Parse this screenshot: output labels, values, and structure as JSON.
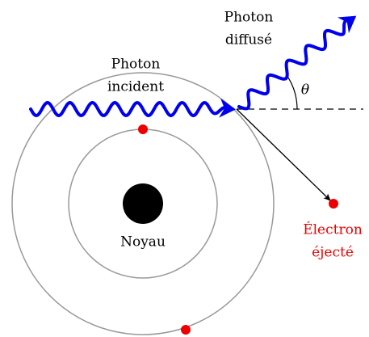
{
  "labels": {
    "incident": [
      "Photon",
      "incident"
    ],
    "scattered": [
      "Photon",
      "diffusé"
    ],
    "angle": "θ",
    "nucleus": "Noyau",
    "electron": [
      "Électron",
      "éjecté"
    ]
  }
}
